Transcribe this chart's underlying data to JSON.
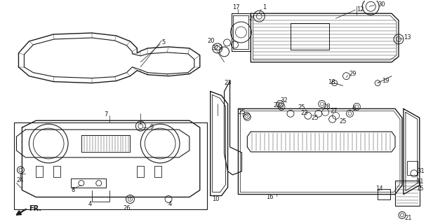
{
  "bg_color": "#ffffff",
  "line_color": "#1a1a1a",
  "fig_width": 6.07,
  "fig_height": 3.2,
  "dpi": 100
}
